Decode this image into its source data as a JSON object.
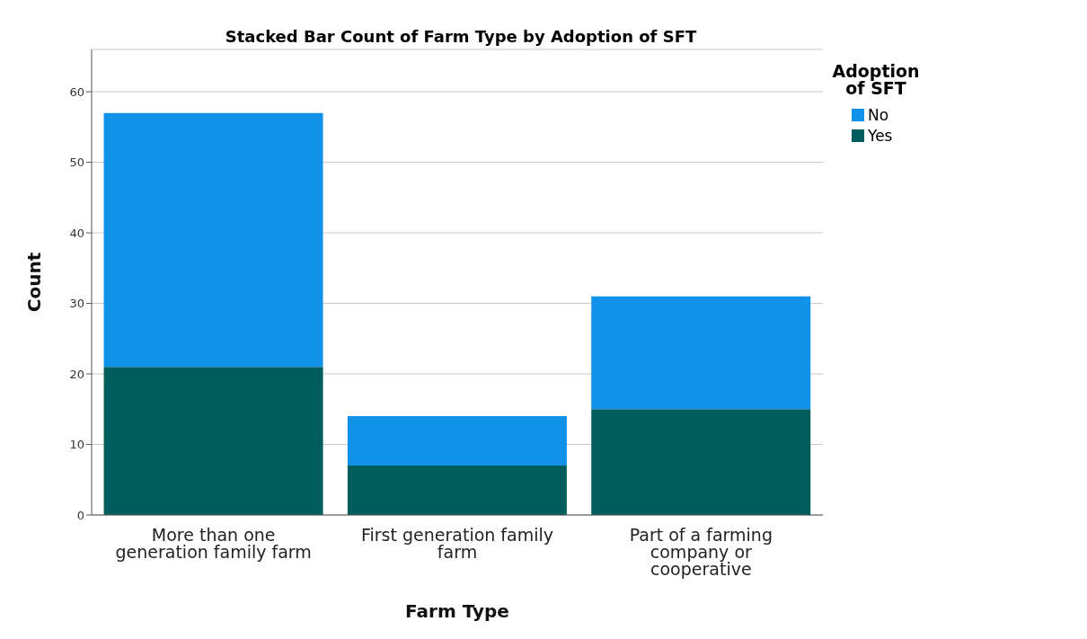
{
  "chart_data": {
    "type": "bar",
    "title": "Stacked Bar Count of Farm Type by Adoption of SFT",
    "xlabel": "Farm Type",
    "ylabel": "Count",
    "legend_title": "Adoption of SFT",
    "categories": [
      "More than one generation family farm",
      "First generation family farm",
      "Part of a farming company or cooperative"
    ],
    "series": [
      {
        "name": "Yes",
        "color": "#005d5d",
        "values": [
          21,
          7,
          15
        ]
      },
      {
        "name": "No",
        "color": "#1192e8",
        "values": [
          36,
          7,
          16
        ]
      }
    ],
    "stacked": true,
    "ylim": [
      0,
      66
    ],
    "yticks": [
      0,
      10,
      20,
      30,
      40,
      50,
      60
    ],
    "grid": "y",
    "legend": "top right"
  }
}
